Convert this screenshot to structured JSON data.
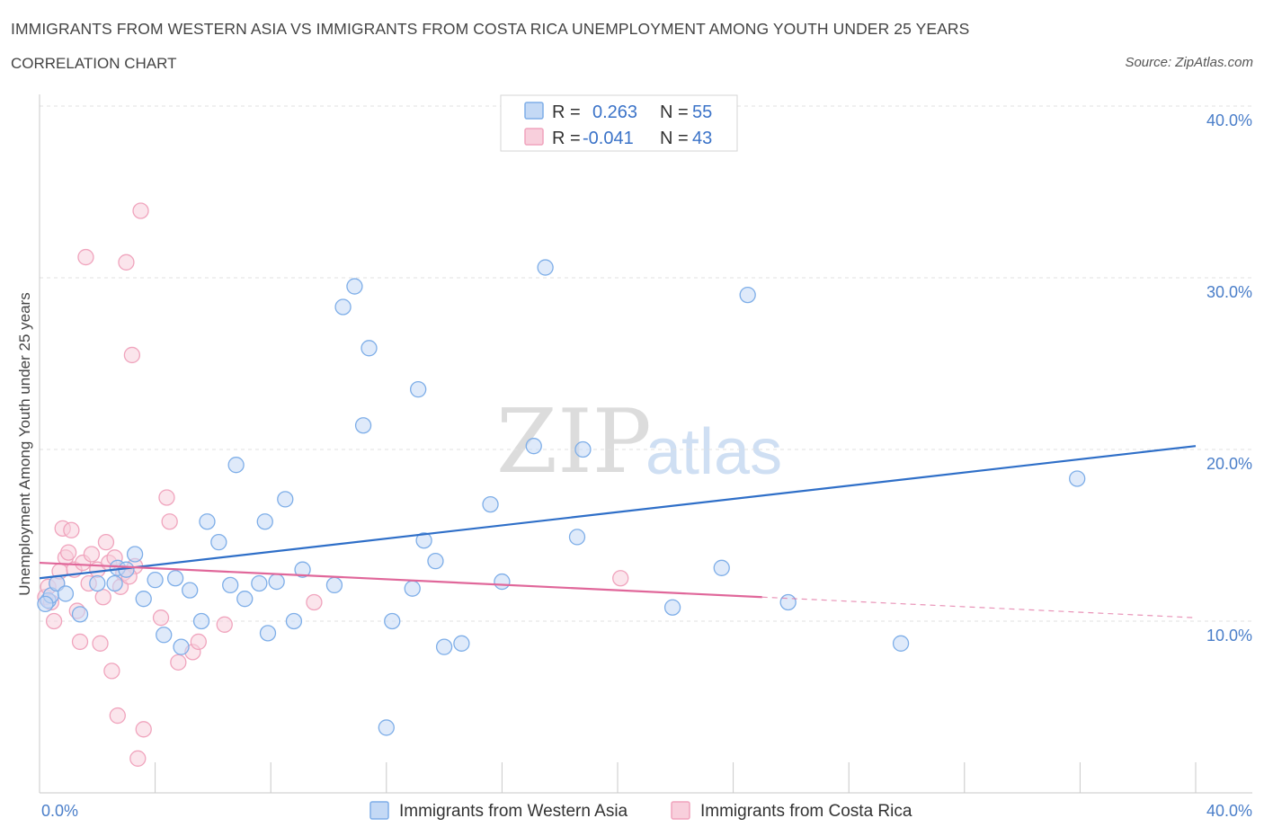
{
  "header": {
    "title": "IMMIGRANTS FROM WESTERN ASIA VS IMMIGRANTS FROM COSTA RICA UNEMPLOYMENT AMONG YOUTH UNDER 25 YEARS",
    "subtitle": "CORRELATION CHART",
    "source": "Source: ZipAtlas.com"
  },
  "watermark": {
    "zip": "ZIP",
    "atlas": "atlas"
  },
  "legend": {
    "rows": [
      {
        "r_label": "R =",
        "r_value": "0.263",
        "n_label": "N =",
        "n_value": "55"
      },
      {
        "r_label": "R =",
        "r_value": "-0.041",
        "n_label": "N =",
        "n_value": "43"
      }
    ]
  },
  "chart_data": {
    "type": "scatter",
    "title": "IMMIGRANTS FROM WESTERN ASIA VS IMMIGRANTS FROM COSTA RICA UNEMPLOYMENT AMONG YOUTH UNDER 25 YEARS",
    "xlabel": "",
    "ylabel": "Unemployment Among Youth under 25 years",
    "xlim": [
      0,
      40
    ],
    "ylim": [
      0,
      40
    ],
    "x_tick_labels": [
      "0.0%",
      "40.0%"
    ],
    "y_tick_labels": [
      "10.0%",
      "20.0%",
      "30.0%",
      "40.0%"
    ],
    "y_ticks": [
      10,
      20,
      30,
      40
    ],
    "grid": true,
    "legend_position": "bottom-center",
    "series": [
      {
        "name": "Immigrants from Western Asia",
        "color": "#7eaee8",
        "fill": "#c4d9f5",
        "line_color": "#2f6fc8",
        "R": 0.263,
        "N": 55,
        "trend": {
          "x": [
            0,
            40
          ],
          "y": [
            12.5,
            20.2
          ]
        },
        "points": [
          [
            0.3,
            11.2
          ],
          [
            0.4,
            11.5
          ],
          [
            0.6,
            12.2
          ],
          [
            0.9,
            11.6
          ],
          [
            1.4,
            10.4
          ],
          [
            2.0,
            12.2
          ],
          [
            2.6,
            12.2
          ],
          [
            2.7,
            13.1
          ],
          [
            3.0,
            13.0
          ],
          [
            3.3,
            13.9
          ],
          [
            3.6,
            11.3
          ],
          [
            4.0,
            12.4
          ],
          [
            4.3,
            9.2
          ],
          [
            4.7,
            12.5
          ],
          [
            4.9,
            8.5
          ],
          [
            5.2,
            11.8
          ],
          [
            5.6,
            10.0
          ],
          [
            5.8,
            15.8
          ],
          [
            6.2,
            14.6
          ],
          [
            6.6,
            12.1
          ],
          [
            6.8,
            19.1
          ],
          [
            7.1,
            11.3
          ],
          [
            7.6,
            12.2
          ],
          [
            7.8,
            15.8
          ],
          [
            7.9,
            9.3
          ],
          [
            8.2,
            12.3
          ],
          [
            8.5,
            17.1
          ],
          [
            8.8,
            10.0
          ],
          [
            9.1,
            13.0
          ],
          [
            10.2,
            12.1
          ],
          [
            10.5,
            28.3
          ],
          [
            10.9,
            29.5
          ],
          [
            11.2,
            21.4
          ],
          [
            11.4,
            25.9
          ],
          [
            12.0,
            3.8
          ],
          [
            12.2,
            10.0
          ],
          [
            12.9,
            11.9
          ],
          [
            13.1,
            23.5
          ],
          [
            13.3,
            14.7
          ],
          [
            13.7,
            13.5
          ],
          [
            14.0,
            8.5
          ],
          [
            14.6,
            8.7
          ],
          [
            15.6,
            16.8
          ],
          [
            16.0,
            12.3
          ],
          [
            17.1,
            20.2
          ],
          [
            17.5,
            30.6
          ],
          [
            18.6,
            14.9
          ],
          [
            18.8,
            20.0
          ],
          [
            21.9,
            10.8
          ],
          [
            23.6,
            13.1
          ],
          [
            24.5,
            29.0
          ],
          [
            25.9,
            11.1
          ],
          [
            29.8,
            8.7
          ],
          [
            35.9,
            18.3
          ],
          [
            0.2,
            11.0
          ]
        ]
      },
      {
        "name": "Immigrants from Costa Rica",
        "color": "#f0a4bd",
        "fill": "#f8cfdc",
        "line_color": "#e0679a",
        "R": -0.041,
        "N": 43,
        "trend": {
          "x": [
            0,
            25
          ],
          "y": [
            13.4,
            11.4
          ]
        },
        "trend_dashed": {
          "x": [
            25,
            40
          ],
          "y": [
            11.4,
            10.2
          ]
        },
        "points": [
          [
            0.2,
            11.4
          ],
          [
            0.3,
            12.0
          ],
          [
            0.4,
            11.1
          ],
          [
            0.5,
            10.0
          ],
          [
            0.6,
            12.2
          ],
          [
            0.7,
            12.9
          ],
          [
            0.8,
            15.4
          ],
          [
            0.9,
            13.7
          ],
          [
            1.0,
            14.0
          ],
          [
            1.1,
            15.3
          ],
          [
            1.2,
            13.0
          ],
          [
            1.3,
            10.6
          ],
          [
            1.4,
            8.8
          ],
          [
            1.5,
            13.4
          ],
          [
            1.6,
            31.2
          ],
          [
            1.8,
            13.9
          ],
          [
            2.0,
            13.0
          ],
          [
            2.1,
            8.7
          ],
          [
            2.2,
            11.4
          ],
          [
            2.3,
            14.6
          ],
          [
            2.4,
            13.4
          ],
          [
            2.5,
            7.1
          ],
          [
            2.6,
            13.7
          ],
          [
            2.7,
            4.5
          ],
          [
            2.8,
            12.0
          ],
          [
            2.9,
            12.8
          ],
          [
            3.0,
            30.9
          ],
          [
            3.2,
            25.5
          ],
          [
            3.3,
            13.2
          ],
          [
            3.4,
            2.0
          ],
          [
            3.5,
            33.9
          ],
          [
            3.6,
            3.7
          ],
          [
            4.2,
            10.2
          ],
          [
            4.4,
            17.2
          ],
          [
            4.5,
            15.8
          ],
          [
            4.8,
            7.6
          ],
          [
            5.3,
            8.2
          ],
          [
            5.5,
            8.8
          ],
          [
            6.4,
            9.8
          ],
          [
            9.5,
            11.1
          ],
          [
            20.1,
            12.5
          ],
          [
            1.7,
            12.2
          ],
          [
            3.1,
            12.6
          ]
        ]
      }
    ]
  }
}
